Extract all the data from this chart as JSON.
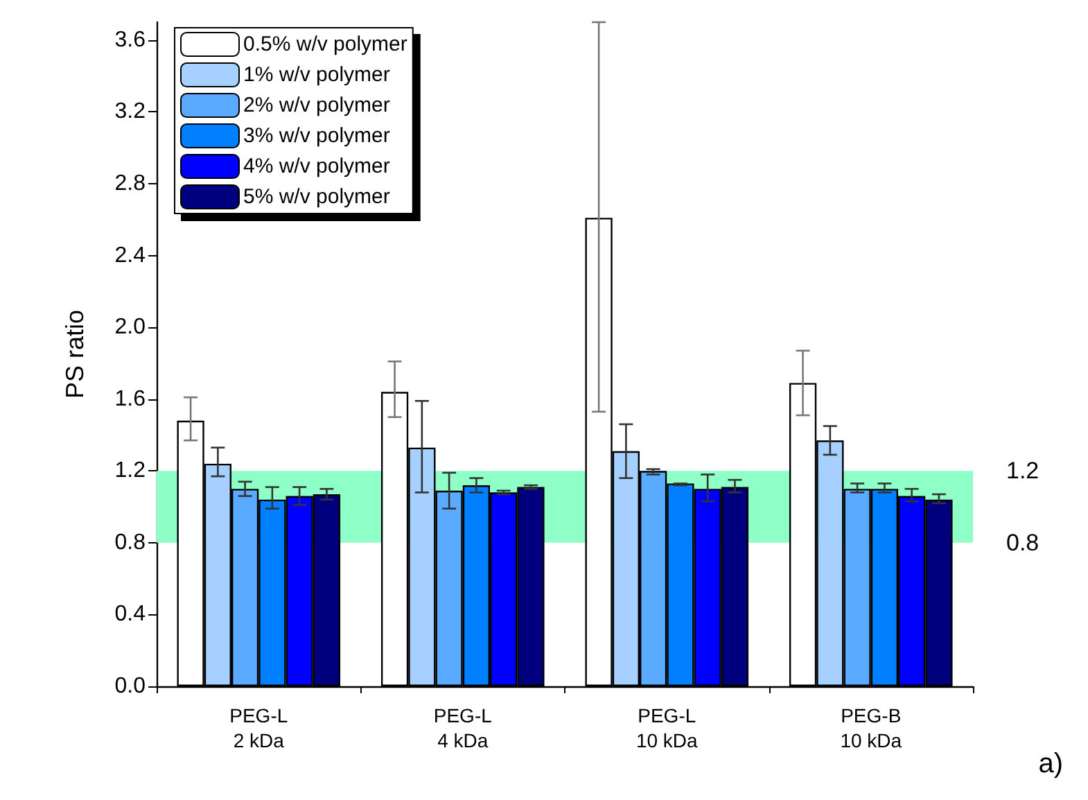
{
  "chart_data": {
    "type": "bar",
    "ylabel": "PS ratio",
    "categories": [
      "PEG-L\n2 kDa",
      "PEG-L\n4 kDa",
      "PEG-L\n10 kDa",
      "PEG-B\n10 kDa"
    ],
    "series": [
      {
        "name": "0.5% w/v polymer",
        "color": "#ffffff",
        "values": [
          1.48,
          1.64,
          2.61,
          1.69
        ],
        "errors": [
          [
            1.37,
            1.61
          ],
          [
            1.5,
            1.81
          ],
          [
            1.53,
            3.7
          ],
          [
            1.51,
            1.87
          ]
        ]
      },
      {
        "name": "1% w/v polymer",
        "color": "#a6d0ff",
        "values": [
          1.24,
          1.33,
          1.31,
          1.37
        ],
        "errors": [
          [
            1.17,
            1.33
          ],
          [
            1.08,
            1.59
          ],
          [
            1.16,
            1.46
          ],
          [
            1.29,
            1.45
          ]
        ]
      },
      {
        "name": "2% w/v polymer",
        "color": "#5aaaff",
        "values": [
          1.1,
          1.09,
          1.2,
          1.1
        ],
        "errors": [
          [
            1.06,
            1.14
          ],
          [
            0.99,
            1.19
          ],
          [
            1.18,
            1.21
          ],
          [
            1.08,
            1.13
          ]
        ]
      },
      {
        "name": "3% w/v polymer",
        "color": "#0080ff",
        "values": [
          1.04,
          1.12,
          1.13,
          1.1
        ],
        "errors": [
          [
            0.99,
            1.11
          ],
          [
            1.08,
            1.16
          ],
          [
            1.12,
            1.13
          ],
          [
            1.08,
            1.13
          ]
        ]
      },
      {
        "name": "4% w/v polymer",
        "color": "#0000ff",
        "values": [
          1.06,
          1.08,
          1.1,
          1.06
        ],
        "errors": [
          [
            1.01,
            1.11
          ],
          [
            1.07,
            1.09
          ],
          [
            1.03,
            1.18
          ],
          [
            1.03,
            1.1
          ]
        ]
      },
      {
        "name": "5% w/v polymer",
        "color": "#00007f",
        "values": [
          1.07,
          1.11,
          1.11,
          1.04
        ],
        "errors": [
          [
            1.04,
            1.1
          ],
          [
            1.1,
            1.12
          ],
          [
            1.08,
            1.15
          ],
          [
            1.02,
            1.07
          ]
        ]
      }
    ],
    "ylim": [
      0,
      3.7
    ],
    "yticks": [
      {
        "value": 0,
        "label": "0.0"
      },
      0.4,
      0.8,
      1.2,
      1.6,
      {
        "value": 2,
        "label": "2.0"
      },
      2.4,
      2.8,
      3.2,
      3.6
    ],
    "bands": [
      {
        "axis": "y",
        "from": 0.8,
        "to": 1.2,
        "color": "#8fffc8"
      }
    ],
    "y2lim": [
      0,
      3.7
    ],
    "y2ticks": [
      0.8,
      1.2
    ],
    "annotations": [
      "a)"
    ],
    "legend": "top left",
    "grid": false
  }
}
